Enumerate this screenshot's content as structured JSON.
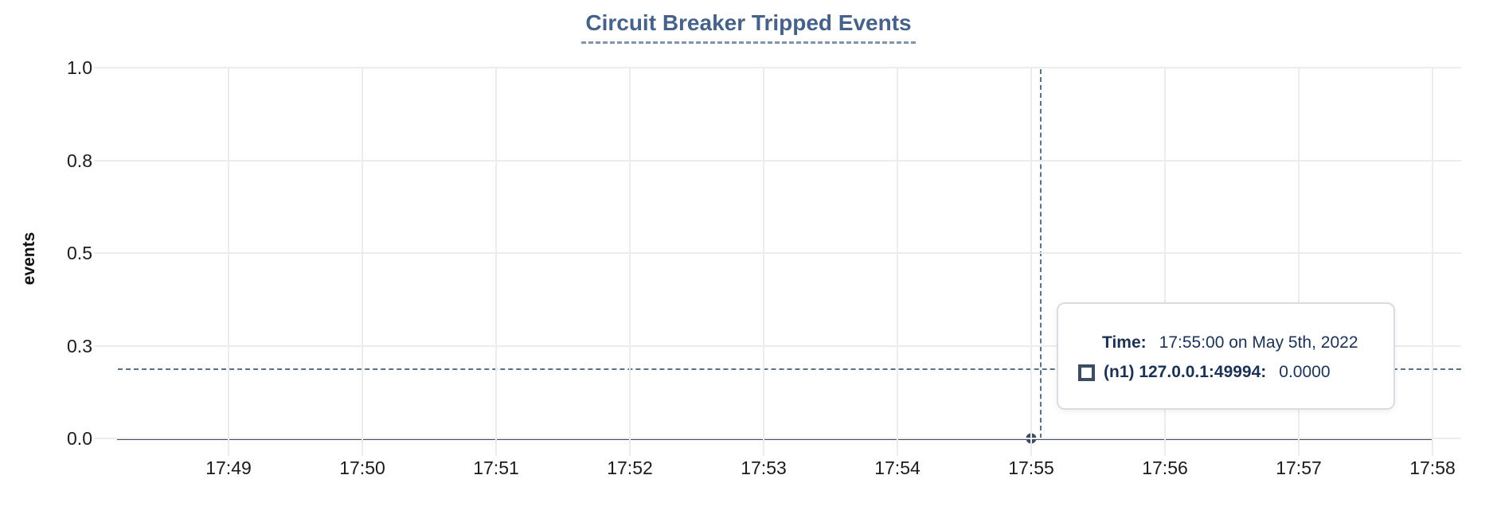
{
  "title": "Circuit Breaker Tripped Events",
  "chart_data": {
    "type": "line",
    "title": "Circuit Breaker Tripped Events",
    "xlabel": "",
    "ylabel": "events",
    "ylim": [
      0.0,
      1.0
    ],
    "grid": true,
    "x_ticks": [
      "17:49",
      "17:50",
      "17:51",
      "17:52",
      "17:53",
      "17:54",
      "17:55",
      "17:56",
      "17:57",
      "17:58"
    ],
    "y_ticks": [
      "1.0",
      "0.8",
      "0.5",
      "0.3",
      "0.0"
    ],
    "x_range": [
      "17:48:05",
      "17:58:13"
    ],
    "series": [
      {
        "name": "(n1) 127.0.0.1:49994",
        "x": [
          "17:48:10",
          "17:58:00"
        ],
        "y": [
          0,
          0
        ],
        "color": "#3d4b63"
      }
    ],
    "hover_point": {
      "x": "17:55:00",
      "y": 0.0
    }
  },
  "tooltip": {
    "time_label": "Time:",
    "time_value": "17:55:00 on May 5th, 2022",
    "series_label": "(n1) 127.0.0.1:49994:",
    "series_value": "0.0000"
  },
  "icons": {
    "legend_glyph": "square-outline-icon"
  },
  "colors": {
    "title": "#46618a",
    "title_underline": "#8494ab",
    "series_line": "#3d4b63",
    "crosshair": "#5c7285",
    "gridline": "#ececec",
    "tick_text": "#1b1b1b",
    "tooltip_text": "#1c3254",
    "tooltip_border": "#d9dde3",
    "background": "#ffffff"
  }
}
